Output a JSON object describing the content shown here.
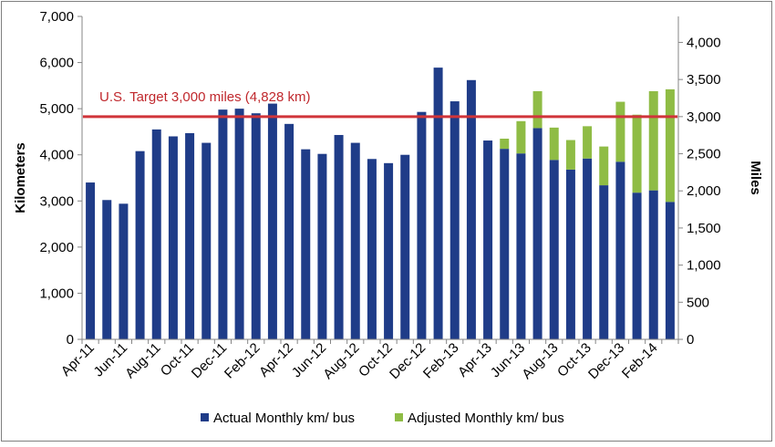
{
  "chart_data": {
    "type": "bar",
    "stacked": true,
    "categories": [
      "Apr-11",
      "May-11",
      "Jun-11",
      "Jul-11",
      "Aug-11",
      "Sep-11",
      "Oct-11",
      "Nov-11",
      "Dec-11",
      "Jan-12",
      "Feb-12",
      "Mar-12",
      "Apr-12",
      "May-12",
      "Jun-12",
      "Jul-12",
      "Aug-12",
      "Sep-12",
      "Oct-12",
      "Nov-12",
      "Dec-12",
      "Jan-13",
      "Feb-13",
      "Mar-13",
      "Apr-13",
      "May-13",
      "Jun-13",
      "Jul-13",
      "Aug-13",
      "Sep-13",
      "Oct-13",
      "Nov-13",
      "Dec-13",
      "Jan-14",
      "Feb-14",
      "Mar-14"
    ],
    "x_tick_labels": [
      "Apr-11",
      "Jun-11",
      "Aug-11",
      "Oct-11",
      "Dec-11",
      "Feb-12",
      "Apr-12",
      "Jun-12",
      "Aug-12",
      "Oct-12",
      "Dec-12",
      "Feb-13",
      "Apr-13",
      "Jun-13",
      "Aug-13",
      "Oct-13",
      "Dec-13",
      "Feb-14"
    ],
    "series": [
      {
        "name": "Actual Monthly km/ bus",
        "color": "#1f3c88",
        "values": [
          3400,
          3020,
          2940,
          4080,
          4550,
          4400,
          4470,
          4260,
          4980,
          5000,
          4900,
          5110,
          4670,
          4120,
          4020,
          4430,
          4260,
          3910,
          3820,
          4000,
          4930,
          5890,
          5160,
          5620,
          4310,
          4130,
          4030,
          4580,
          3890,
          3680,
          3920,
          3340,
          3850,
          3180,
          3230,
          2980
        ]
      },
      {
        "name": "Adjusted Monthly km/ bus",
        "color": "#8fbc45",
        "values": [
          0,
          0,
          0,
          0,
          0,
          0,
          0,
          0,
          0,
          0,
          0,
          0,
          0,
          0,
          0,
          0,
          0,
          0,
          0,
          0,
          0,
          0,
          0,
          0,
          0,
          220,
          700,
          800,
          700,
          640,
          700,
          840,
          1300,
          1690,
          2150,
          2440
        ]
      }
    ],
    "target": {
      "label": "U.S. Target 3,000 miles (4,828 km)",
      "value_km": 4828,
      "color": "#d0343a"
    },
    "y_left": {
      "label": "Kilometers",
      "min": 0,
      "max": 7000,
      "step": 1000,
      "ticks": [
        "0",
        "1,000",
        "2,000",
        "3,000",
        "4,000",
        "5,000",
        "6,000",
        "7,000"
      ]
    },
    "y_right": {
      "label": "Miles",
      "min": 0,
      "max": 4000,
      "step": 500,
      "ticks": [
        "0",
        "500",
        "1,000",
        "1,500",
        "2,000",
        "2,500",
        "3,000",
        "3,500",
        "4,000"
      ]
    },
    "legend": {
      "placement": "bottom"
    },
    "grid": false
  }
}
